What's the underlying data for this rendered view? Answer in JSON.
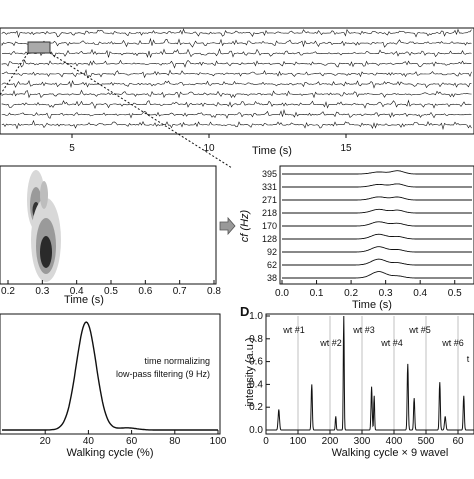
{
  "panel_a": {
    "xlabel": "Time (s)",
    "xticks": [
      "5",
      "10",
      "15"
    ]
  },
  "panel_b": {
    "xlabel": "Time (s)",
    "xticks": [
      "0.2",
      "0.3",
      "0.4",
      "0.5",
      "0.6",
      "0.7",
      "0.8"
    ]
  },
  "panel_c": {
    "xlabel": "Time (s)",
    "ylabel": "cf (Hz)",
    "yticks": [
      "395",
      "331",
      "271",
      "218",
      "170",
      "128",
      "92",
      "62",
      "38"
    ],
    "xticks": [
      "0.0",
      "0.1",
      "0.2",
      "0.3",
      "0.4",
      "0.5"
    ]
  },
  "panel_e": {
    "xlabel": "Walking cycle (%)",
    "xticks": [
      "20",
      "40",
      "60",
      "80",
      "100"
    ],
    "annotation_line1": "time normalizing",
    "annotation_line2": "low-pass filtering (9 Hz)"
  },
  "panel_d": {
    "letter": "D",
    "xlabel": "Walking cycle × 9 wavel",
    "ylabel": "intensity (a.u.)",
    "yticks": [
      "1.0",
      "0.8",
      "0.6",
      "0.4",
      "0.2",
      "0.0"
    ],
    "xticks": [
      "0",
      "100",
      "200",
      "300",
      "400",
      "500",
      "60"
    ],
    "wt_labels": [
      "wt #1",
      "wt #2",
      "wt #3",
      "wt #4",
      "wt #5",
      "wt #6",
      "t"
    ]
  },
  "colors": {
    "ink": "#111111",
    "grid": "#999999",
    "contour_light": "#d8d8d8",
    "contour_dark": "#2a2a2a"
  }
}
